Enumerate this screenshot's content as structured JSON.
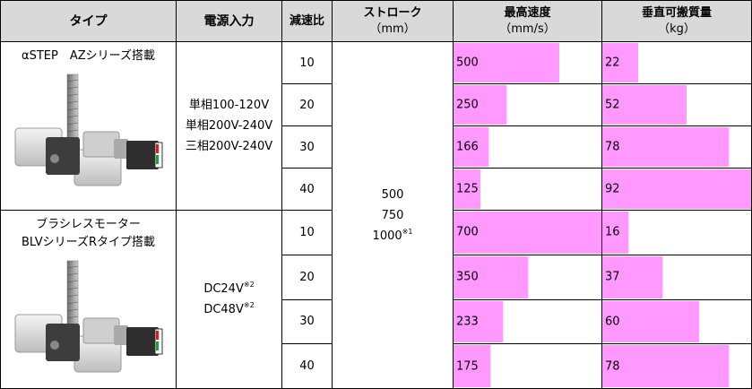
{
  "header": {
    "type": "タイプ",
    "power": "電源入力",
    "ratio": "減速比",
    "stroke": "ストローク",
    "stroke_unit": "（mm）",
    "speed": "最高速度",
    "speed_unit": "（mm/s）",
    "payload": "垂直可搬質量",
    "payload_unit": "（kg）"
  },
  "stroke_values": [
    "500",
    "750",
    "1000"
  ],
  "stroke_note": "※1",
  "colors": {
    "bar": "#ff99ff",
    "header_bg": "#d9d9d9"
  },
  "groups": [
    {
      "type_name": [
        "αSTEP　AZシリーズ搭載"
      ],
      "image_icon": "linear-actuator-az-image",
      "power": [
        {
          "text": "単相100-120V",
          "note": ""
        },
        {
          "text": "単相200V-240V",
          "note": ""
        },
        {
          "text": "三相200V-240V",
          "note": ""
        }
      ],
      "rows": [
        {
          "ratio": "10",
          "speed": 500,
          "speed_label": "500",
          "payload": 22,
          "payload_label": "22"
        },
        {
          "ratio": "20",
          "speed": 250,
          "speed_label": "250",
          "payload": 52,
          "payload_label": "52"
        },
        {
          "ratio": "30",
          "speed": 166,
          "speed_label": "166",
          "payload": 78,
          "payload_label": "78"
        },
        {
          "ratio": "40",
          "speed": 125,
          "speed_label": "125",
          "payload": 92,
          "payload_label": "92"
        }
      ]
    },
    {
      "type_name": [
        "ブラシレスモーター",
        "BLVシリーズRタイプ搭載"
      ],
      "image_icon": "linear-actuator-blv-image",
      "power": [
        {
          "text": "DC24V",
          "note": "※2"
        },
        {
          "text": "DC48V",
          "note": "※2"
        }
      ],
      "rows": [
        {
          "ratio": "10",
          "speed": 700,
          "speed_label": "700",
          "payload": 16,
          "payload_label": "16"
        },
        {
          "ratio": "20",
          "speed": 350,
          "speed_label": "350",
          "payload": 37,
          "payload_label": "37"
        },
        {
          "ratio": "30",
          "speed": 233,
          "speed_label": "233",
          "payload": 60,
          "payload_label": "60"
        },
        {
          "ratio": "40",
          "speed": 175,
          "speed_label": "175",
          "payload": 78,
          "payload_label": "78"
        }
      ]
    }
  ],
  "speed_max": 700,
  "payload_max": 92
}
